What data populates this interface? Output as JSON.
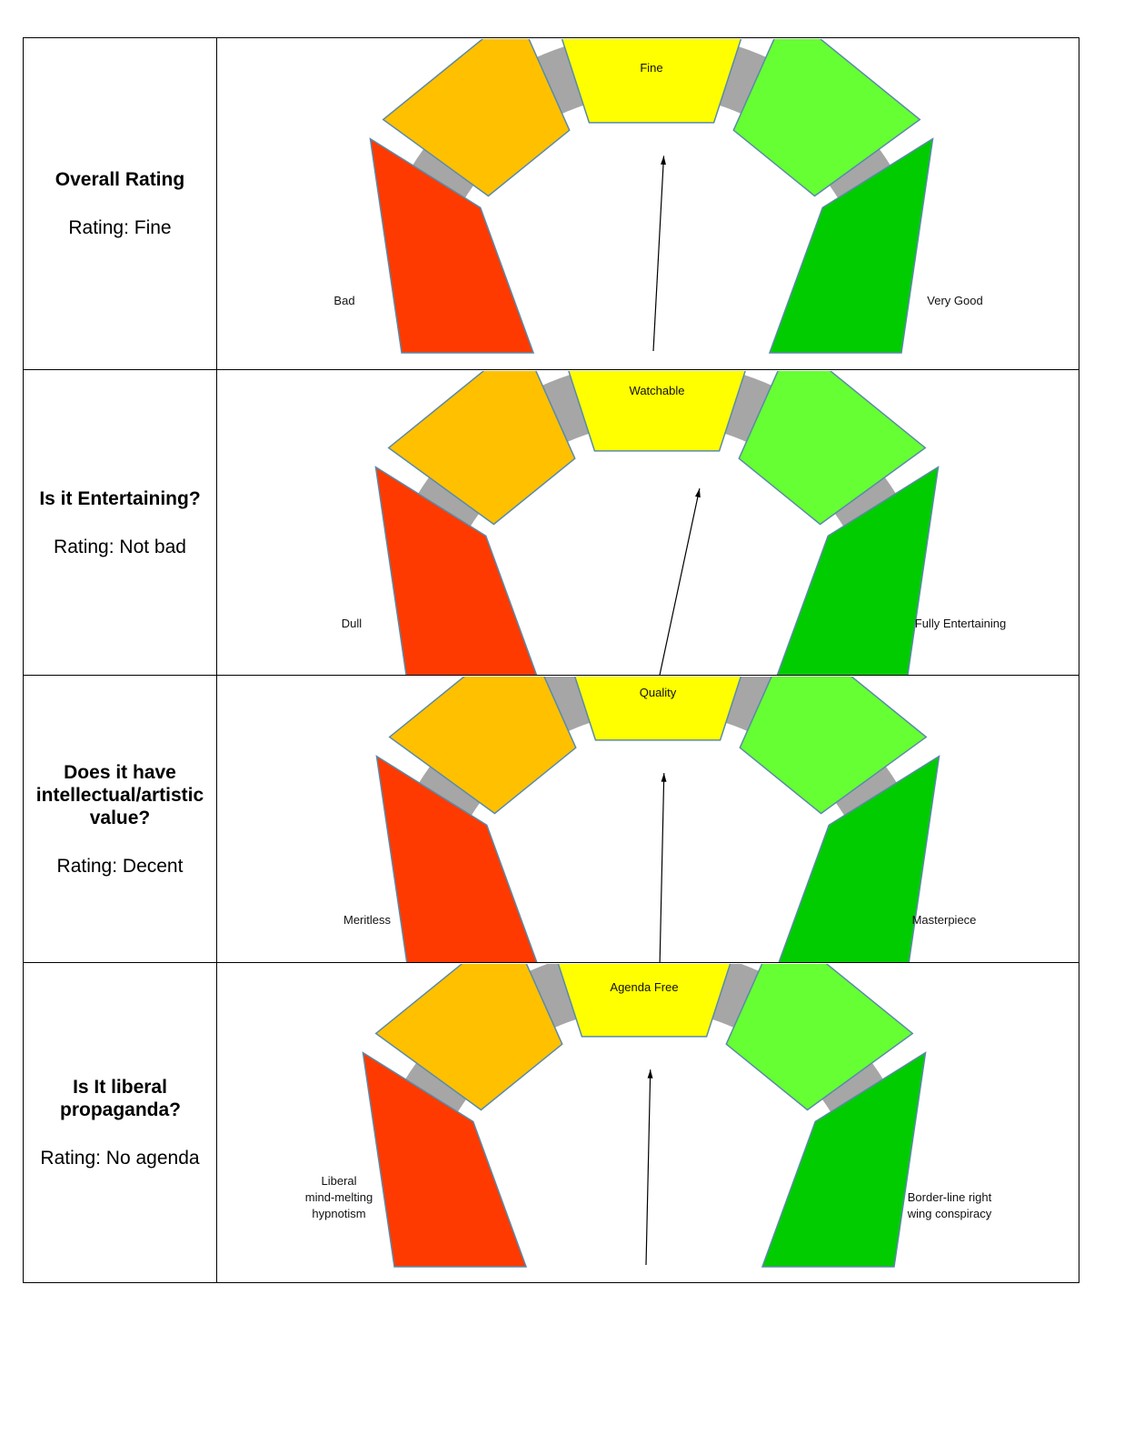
{
  "colors": {
    "track": "#a6a6a6",
    "segments": [
      "#ff3a00",
      "#ffc000",
      "#ffff00",
      "#66ff33",
      "#00cc00"
    ],
    "outline": "#5b8aa8",
    "needle": "#000000"
  },
  "rows": [
    {
      "question": "Overall Rating",
      "rating_text": "Rating: Fine",
      "gauge": {
        "top_label": "Fine",
        "left_label": [
          "Bad"
        ],
        "right_label": [
          "Very Good"
        ],
        "value": 0.52
      }
    },
    {
      "question": "Is it Entertaining?",
      "rating_text": "Rating: Not bad",
      "gauge": {
        "top_label": "Watchable",
        "left_label": [
          "Dull"
        ],
        "right_label": [
          "Fully Entertaining"
        ],
        "value": 0.57
      }
    },
    {
      "question": "Does it have intellectual/artistic value?",
      "rating_text": "Rating:  Decent",
      "gauge": {
        "top_label": "Quality",
        "left_label": [
          "Meritless"
        ],
        "right_label": [
          "Masterpiece"
        ],
        "value": 0.51
      }
    },
    {
      "question": "Is It liberal propaganda?",
      "rating_text": "Rating: No agenda",
      "gauge": {
        "top_label": "Agenda Free",
        "left_label": [
          "Liberal",
          "mind-melting",
          "hypnotism"
        ],
        "right_label": [
          "Border-line right",
          "wing conspiracy"
        ],
        "value": 0.51
      }
    }
  ]
}
